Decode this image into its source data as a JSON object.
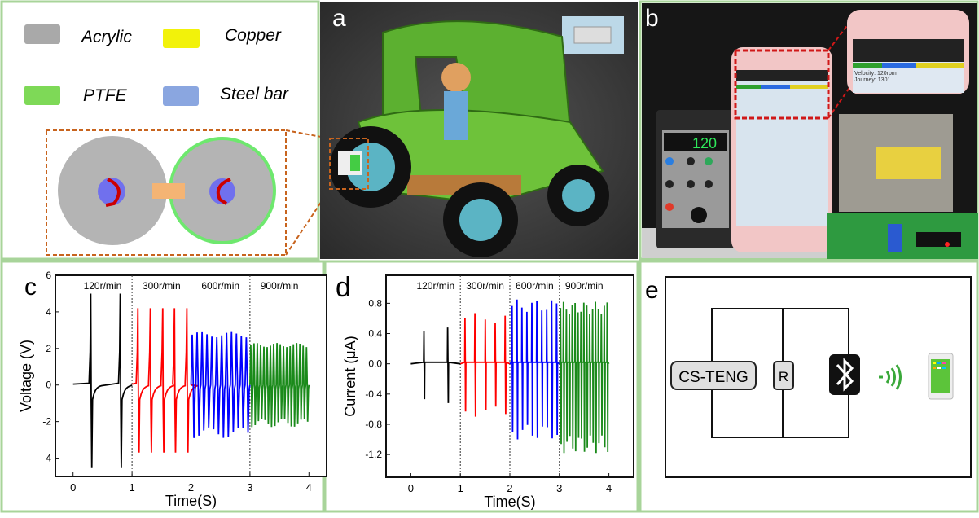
{
  "legend": {
    "items": [
      {
        "label": "Acrylic",
        "color": "#a9a9a9"
      },
      {
        "label": "Copper",
        "color": "#f2f20a"
      },
      {
        "label": "PTFE",
        "color": "#7ed957"
      },
      {
        "label": "Steel bar",
        "color": "#8aa6e0"
      }
    ]
  },
  "panels": {
    "a": "a",
    "b": "b",
    "c": "c",
    "d": "d",
    "e": "e"
  },
  "photo_b": {
    "controller_display": "120",
    "inset_lines": [
      "Velocity: 120rpm",
      "Journey: 1301"
    ]
  },
  "circuit": {
    "source_label": "CS-TENG",
    "resistor_label": "R"
  },
  "chart_data": [
    {
      "type": "line",
      "panel": "c",
      "xlabel": "Time(S)",
      "ylabel": "Voltage (V)",
      "xlim": [
        -0.3,
        4.3
      ],
      "ylim": [
        -5,
        6
      ],
      "xticks": [
        0,
        1,
        2,
        3,
        4
      ],
      "yticks": [
        -4,
        -2,
        0,
        2,
        4,
        6
      ],
      "dividers": [
        1,
        2,
        3
      ],
      "series": [
        {
          "name": "120r/min",
          "color": "#000000",
          "t": [
            0,
            1
          ],
          "pulses": [
            0.3,
            0.8
          ],
          "peak": 5.0,
          "trough": -4.5,
          "style": "pulse"
        },
        {
          "name": "300r/min",
          "color": "#ff0000",
          "t": [
            1,
            2
          ],
          "pulses": [
            1.1,
            1.31,
            1.52,
            1.72,
            1.93
          ],
          "peak": 4.2,
          "trough": -3.7,
          "style": "pulse"
        },
        {
          "name": "600r/min",
          "color": "#0000ff",
          "t": [
            2,
            3
          ],
          "cycles": 12,
          "peak": 2.9,
          "trough": -2.9,
          "style": "osc"
        },
        {
          "name": "900r/min",
          "color": "#1a8a1a",
          "t": [
            3,
            4
          ],
          "cycles": 18,
          "peak": 2.3,
          "trough": -2.3,
          "style": "osc"
        }
      ]
    },
    {
      "type": "line",
      "panel": "d",
      "xlabel": "Time(S)",
      "ylabel": "Current (μA)",
      "xlim": [
        -0.5,
        4.5
      ],
      "ylim": [
        -1.5,
        1.17
      ],
      "xticks": [
        0,
        1,
        2,
        3,
        4
      ],
      "yticks": [
        -1.2,
        -0.8,
        -0.4,
        0.0,
        0.4,
        0.8
      ],
      "ytick_labels": [
        "-1.2",
        "-0.8",
        "-0.4",
        "0.0",
        "0.4",
        "0.8"
      ],
      "dividers": [
        1,
        2,
        3
      ],
      "series": [
        {
          "name": "120r/min",
          "color": "#000000",
          "t": [
            0,
            1
          ],
          "pulses": [
            0.27,
            0.75
          ],
          "peak": 0.48,
          "trough": -0.52,
          "style": "spike"
        },
        {
          "name": "300r/min",
          "color": "#ff0000",
          "t": [
            1,
            2
          ],
          "pulses": [
            1.1,
            1.3,
            1.51,
            1.71,
            1.91
          ],
          "peak": 0.67,
          "trough": -0.7,
          "style": "spike"
        },
        {
          "name": "600r/min",
          "color": "#0000ff",
          "cycles": 10,
          "t": [
            2,
            3
          ],
          "peak": 0.85,
          "trough": -1.0,
          "style": "spikes"
        },
        {
          "name": "900r/min",
          "color": "#1a8a1a",
          "cycles": 17,
          "t": [
            3,
            4
          ],
          "peak": 0.82,
          "trough": -1.18,
          "style": "spikes"
        }
      ]
    }
  ]
}
